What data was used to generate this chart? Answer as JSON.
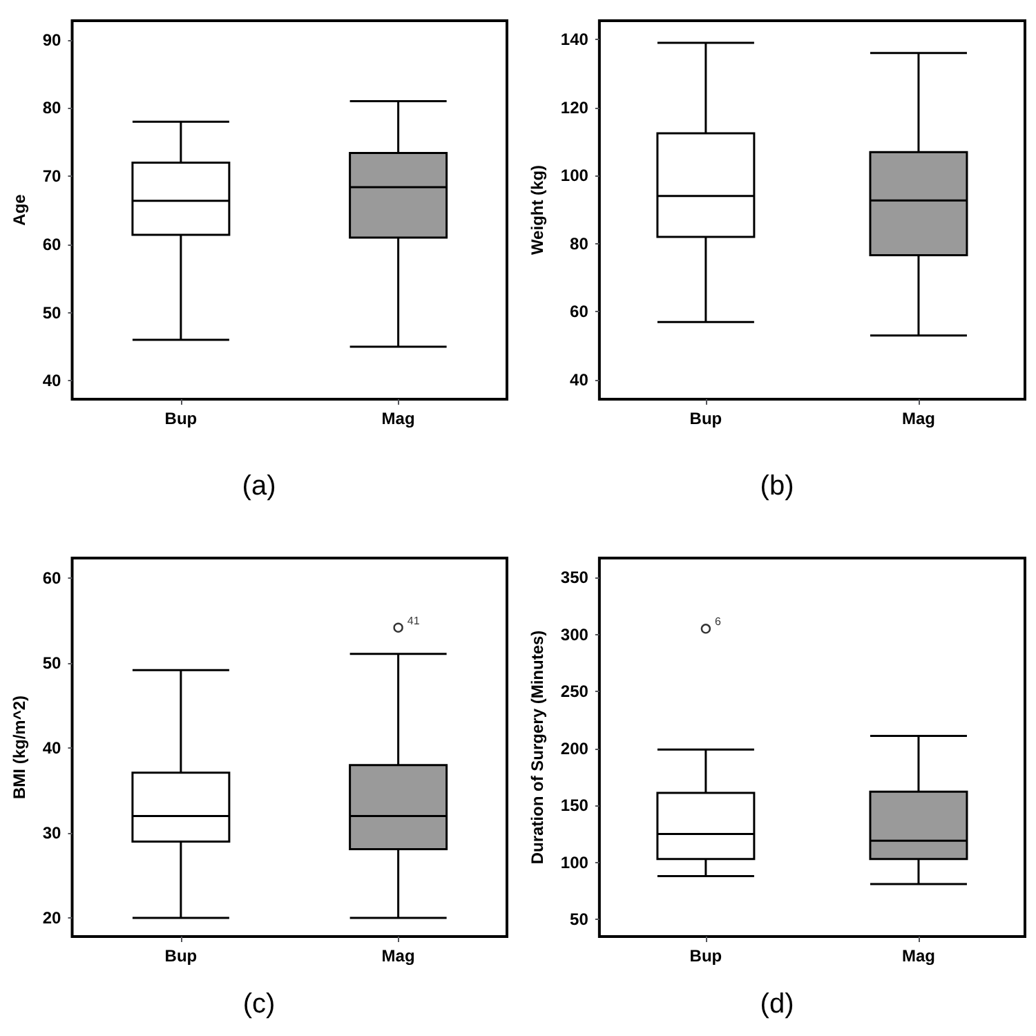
{
  "chart_data": [
    {
      "type": "box",
      "title": "(a)",
      "ylabel": "Age",
      "categories": [
        "Bup",
        "Mag"
      ],
      "colors": [
        "#ffffff",
        "#9a9a9a"
      ],
      "ylim": [
        37.3,
        92.8
      ],
      "yticks": [
        40,
        50,
        60,
        70,
        80,
        90
      ],
      "grid": false,
      "boxes": [
        {
          "low": 46,
          "q1": 61.4,
          "median": 66.4,
          "q3": 72,
          "high": 78
        },
        {
          "low": 45,
          "q1": 61,
          "median": 68.4,
          "q3": 73.4,
          "high": 81
        }
      ]
    },
    {
      "type": "box",
      "title": "(b)",
      "ylabel": "Weight (kg)",
      "categories": [
        "Bup",
        "Mag"
      ],
      "colors": [
        "#ffffff",
        "#9a9a9a"
      ],
      "ylim": [
        34.3,
        145.5
      ],
      "yticks": [
        40,
        60,
        80,
        100,
        120,
        140
      ],
      "grid": false,
      "boxes": [
        {
          "low": 57,
          "q1": 82,
          "median": 94,
          "q3": 112.4,
          "high": 139
        },
        {
          "low": 53,
          "q1": 76.6,
          "median": 92.7,
          "q3": 106.9,
          "high": 136
        }
      ]
    },
    {
      "type": "box",
      "title": "(c)",
      "ylabel": "BMI (kg/m^2)",
      "categories": [
        "Bup",
        "Mag"
      ],
      "colors": [
        "#ffffff",
        "#9a9a9a"
      ],
      "ylim": [
        17.8,
        62.4
      ],
      "yticks": [
        20,
        30,
        40,
        50,
        60
      ],
      "grid": false,
      "annotations": [
        "41"
      ],
      "boxes": [
        {
          "low": 20,
          "q1": 29,
          "median": 32,
          "q3": 37.1,
          "high": 49.2
        },
        {
          "low": 20,
          "q1": 28.1,
          "median": 32,
          "q3": 38,
          "high": 51.1,
          "outliers": [
            54.2
          ]
        }
      ]
    },
    {
      "type": "box",
      "title": "(d)",
      "ylabel": "Duration of Surgery (Minutes)",
      "categories": [
        "Bup",
        "Mag"
      ],
      "colors": [
        "#ffffff",
        "#9a9a9a"
      ],
      "ylim": [
        35,
        367
      ],
      "yticks": [
        50,
        100,
        150,
        200,
        250,
        300,
        350
      ],
      "grid": false,
      "annotations": [
        "6"
      ],
      "boxes": [
        {
          "low": 88,
          "q1": 103,
          "median": 125,
          "q3": 161,
          "high": 199,
          "outliers": [
            305
          ]
        },
        {
          "low": 81,
          "q1": 103,
          "median": 119,
          "q3": 162,
          "high": 211
        }
      ]
    }
  ]
}
